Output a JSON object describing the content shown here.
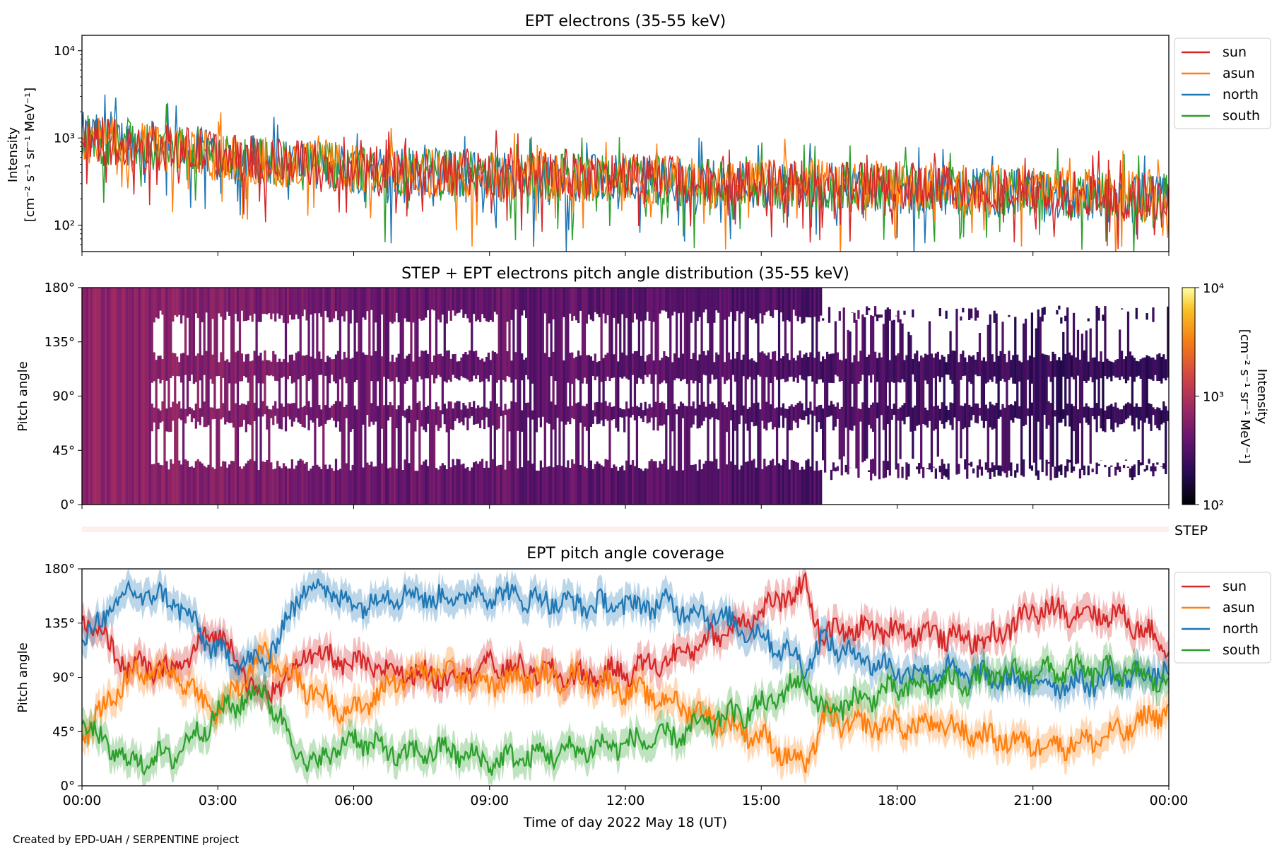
{
  "footer": "Created by EPD-UAH / SERPENTINE project",
  "chart_data": [
    {
      "type": "line",
      "title": "EPT electrons (35-55 keV)",
      "ylabel": [
        "Intensity",
        "[cm⁻² s⁻¹ sr⁻¹ MeV⁻¹]"
      ],
      "yscale": "log",
      "ylim": [
        50,
        15000
      ],
      "yticks": [
        100,
        1000,
        10000
      ],
      "ytick_labels": [
        "10²",
        "10³",
        "10⁴"
      ],
      "x_domain": [
        "2022-05-18 00:00",
        "2022-05-19 00:00"
      ],
      "legend_position": "right, outside top",
      "series": [
        {
          "name": "sun",
          "color": "#d62728",
          "x": [
            "00:00",
            "02:00",
            "04:00",
            "06:00",
            "08:00",
            "10:00",
            "12:00",
            "14:00",
            "16:00",
            "18:00",
            "20:00",
            "22:00",
            "24:00"
          ],
          "values": [
            1000,
            750,
            550,
            450,
            400,
            380,
            350,
            330,
            300,
            280,
            260,
            220,
            200
          ]
        },
        {
          "name": "asun",
          "color": "#ff7f0e",
          "x": [
            "00:00",
            "02:00",
            "04:00",
            "06:00",
            "08:00",
            "10:00",
            "12:00",
            "14:00",
            "16:00",
            "18:00",
            "20:00",
            "22:00",
            "24:00"
          ],
          "values": [
            950,
            720,
            540,
            440,
            390,
            370,
            340,
            320,
            300,
            290,
            270,
            240,
            210
          ]
        },
        {
          "name": "north",
          "color": "#1f77b4",
          "x": [
            "00:00",
            "02:00",
            "04:00",
            "06:00",
            "08:00",
            "10:00",
            "12:00",
            "14:00",
            "16:00",
            "18:00",
            "20:00",
            "22:00",
            "24:00"
          ],
          "values": [
            1050,
            780,
            560,
            450,
            390,
            360,
            330,
            300,
            280,
            260,
            240,
            210,
            190
          ]
        },
        {
          "name": "south",
          "color": "#2ca02c",
          "x": [
            "00:00",
            "02:00",
            "04:00",
            "06:00",
            "08:00",
            "10:00",
            "12:00",
            "14:00",
            "16:00",
            "18:00",
            "20:00",
            "22:00",
            "24:00"
          ],
          "values": [
            1000,
            760,
            550,
            450,
            400,
            370,
            340,
            310,
            290,
            270,
            250,
            220,
            200
          ]
        }
      ]
    },
    {
      "type": "heatmap",
      "title": "STEP + EPT electrons pitch angle distribution (35-55 keV)",
      "ylabel": "Pitch angle",
      "ylim": [
        0,
        180
      ],
      "yticks": [
        0,
        45,
        90,
        135,
        180
      ],
      "ytick_labels": [
        "0°",
        "45°",
        "90°",
        "135°",
        "180°"
      ],
      "colorbar": {
        "label": [
          "Intensity",
          "[cm⁻² s⁻¹ sr⁻¹ MeV⁻¹]"
        ],
        "scale": "log",
        "range": [
          100,
          10000
        ],
        "ticks": [
          100,
          1000,
          10000
        ],
        "tick_labels": [
          "10²",
          "10³",
          "10⁴"
        ],
        "colormap": "inferno"
      },
      "columns": [
        {
          "x": "00:00",
          "intensity": 650
        },
        {
          "x": "01:00",
          "intensity": 620
        },
        {
          "x": "02:00",
          "intensity": 600
        },
        {
          "x": "03:00",
          "intensity": 560
        },
        {
          "x": "04:00",
          "intensity": 520
        },
        {
          "x": "05:00",
          "intensity": 480
        },
        {
          "x": "06:00",
          "intensity": 440
        },
        {
          "x": "07:00",
          "intensity": 420
        },
        {
          "x": "08:00",
          "intensity": 400
        },
        {
          "x": "09:00",
          "intensity": 390
        },
        {
          "x": "10:00",
          "intensity": 380
        },
        {
          "x": "11:00",
          "intensity": 370
        },
        {
          "x": "12:00",
          "intensity": 350
        },
        {
          "x": "13:00",
          "intensity": 340
        },
        {
          "x": "14:00",
          "intensity": 320
        },
        {
          "x": "15:00",
          "intensity": 310
        },
        {
          "x": "16:00",
          "intensity": 300
        },
        {
          "x": "17:00",
          "intensity": 290
        },
        {
          "x": "18:00",
          "intensity": 270
        },
        {
          "x": "19:00",
          "intensity": 260
        },
        {
          "x": "20:00",
          "intensity": 250
        },
        {
          "x": "21:00",
          "intensity": 240
        },
        {
          "x": "22:00",
          "intensity": 220
        },
        {
          "x": "23:00",
          "intensity": 210
        }
      ]
    },
    {
      "type": "strip",
      "label": "STEP",
      "color": "#fdf0eb"
    },
    {
      "type": "line",
      "title": "EPT pitch angle coverage",
      "ylabel": "Pitch angle",
      "xlabel": "Time of day 2022 May 18 (UT)",
      "ylim": [
        0,
        180
      ],
      "yticks": [
        0,
        45,
        90,
        135,
        180
      ],
      "ytick_labels": [
        "0°",
        "45°",
        "90°",
        "135°",
        "180°"
      ],
      "xlim": [
        "2022-05-18 00:00",
        "2022-05-19 00:00"
      ],
      "xticks": [
        "2022-05-18 00:00",
        "2022-05-18 03:00",
        "2022-05-18 06:00",
        "2022-05-18 09:00",
        "2022-05-18 12:00",
        "2022-05-18 15:00",
        "2022-05-18 18:00",
        "2022-05-18 21:00",
        "2022-05-19 00:00"
      ],
      "xtick_labels": [
        "00:00",
        "03:00",
        "06:00",
        "09:00",
        "12:00",
        "15:00",
        "18:00",
        "21:00",
        "00:00"
      ],
      "legend_position": "right, outside top",
      "band_half_width": 12,
      "series": [
        {
          "name": "sun",
          "color": "#d62728",
          "x": [
            "00:00",
            "01:00",
            "02:00",
            "03:00",
            "04:00",
            "05:00",
            "06:00",
            "07:00",
            "08:00",
            "09:00",
            "10:00",
            "11:00",
            "12:00",
            "13:00",
            "14:00",
            "15:00",
            "16:00",
            "16:20",
            "17:00",
            "18:00",
            "19:00",
            "20:00",
            "21:00",
            "22:00",
            "23:00",
            "24:00"
          ],
          "values": [
            140,
            100,
            95,
            130,
            70,
            110,
            100,
            95,
            90,
            100,
            95,
            90,
            95,
            105,
            125,
            145,
            165,
            125,
            130,
            130,
            125,
            120,
            145,
            145,
            140,
            115
          ]
        },
        {
          "name": "asun",
          "color": "#ff7f0e",
          "x": [
            "00:00",
            "01:00",
            "02:00",
            "03:00",
            "04:00",
            "05:00",
            "06:00",
            "07:00",
            "08:00",
            "09:00",
            "10:00",
            "11:00",
            "12:00",
            "13:00",
            "14:00",
            "15:00",
            "16:00",
            "16:20",
            "17:00",
            "18:00",
            "19:00",
            "20:00",
            "21:00",
            "22:00",
            "23:00",
            "24:00"
          ],
          "values": [
            40,
            90,
            95,
            60,
            110,
            80,
            60,
            90,
            95,
            85,
            90,
            90,
            80,
            70,
            55,
            40,
            15,
            55,
            50,
            50,
            50,
            40,
            35,
            35,
            45,
            65
          ]
        },
        {
          "name": "north",
          "color": "#1f77b4",
          "x": [
            "00:00",
            "01:00",
            "02:00",
            "03:00",
            "04:00",
            "05:00",
            "06:00",
            "07:00",
            "08:00",
            "09:00",
            "10:00",
            "11:00",
            "12:00",
            "13:00",
            "14:00",
            "15:00",
            "16:00",
            "16:20",
            "17:00",
            "18:00",
            "19:00",
            "20:00",
            "21:00",
            "22:00",
            "23:00",
            "24:00"
          ],
          "values": [
            120,
            160,
            155,
            110,
            100,
            170,
            150,
            160,
            155,
            160,
            155,
            150,
            150,
            150,
            140,
            125,
            100,
            120,
            110,
            95,
            95,
            90,
            85,
            85,
            90,
            95
          ]
        },
        {
          "name": "south",
          "color": "#2ca02c",
          "x": [
            "00:00",
            "01:00",
            "02:00",
            "03:00",
            "04:00",
            "05:00",
            "06:00",
            "07:00",
            "08:00",
            "09:00",
            "10:00",
            "11:00",
            "12:00",
            "13:00",
            "14:00",
            "15:00",
            "16:00",
            "16:20",
            "17:00",
            "18:00",
            "19:00",
            "20:00",
            "21:00",
            "22:00",
            "23:00",
            "24:00"
          ],
          "values": [
            50,
            20,
            25,
            60,
            80,
            15,
            40,
            25,
            30,
            20,
            25,
            30,
            35,
            40,
            55,
            65,
            90,
            60,
            70,
            80,
            85,
            90,
            95,
            95,
            95,
            85
          ]
        }
      ]
    }
  ]
}
